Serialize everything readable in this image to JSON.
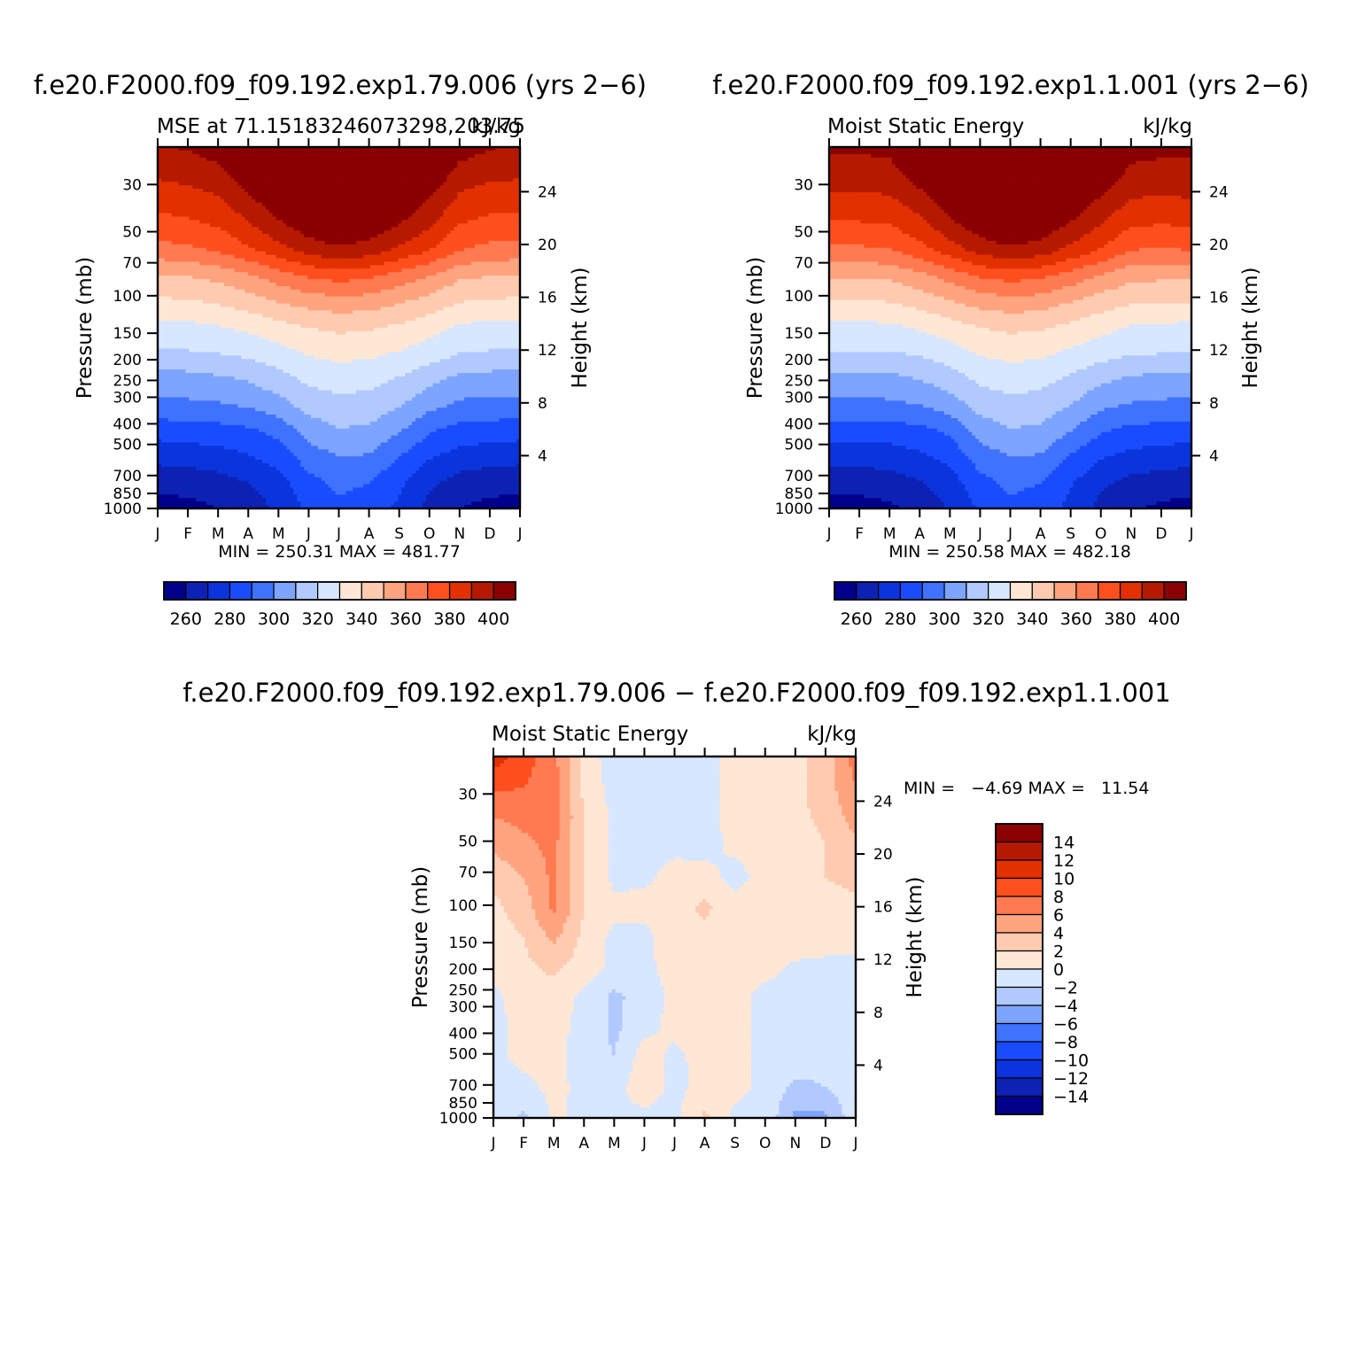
{
  "colors": {
    "mse_scale": [
      "#00008b",
      "#0d22b4",
      "#0a35dc",
      "#1a4cff",
      "#3f73ff",
      "#7da4ff",
      "#b0c9ff",
      "#d7e7ff",
      "#ffe7d5",
      "#ffcbb0",
      "#ffa47f",
      "#ff7a50",
      "#ff4f1f",
      "#e23000",
      "#b51a00",
      "#8b0000"
    ],
    "diff_scale": [
      "#00008b",
      "#0d22b4",
      "#0a35dc",
      "#1a4cff",
      "#3f73ff",
      "#7da4ff",
      "#b0c9ff",
      "#d7e7ff",
      "#ffe7d5",
      "#ffcbb0",
      "#ffa47f",
      "#ff7a50",
      "#ff4f1f",
      "#e23000",
      "#b51a00",
      "#8b0000"
    ]
  },
  "chart_data": [
    {
      "type": "heatmap",
      "title": "f.e20.F2000.f09_f09.192.exp1.79.006 (yrs 2−6)",
      "subtitle_left": "MSE at 71.15183246073298,203.75",
      "subtitle_right": "kJ/kg",
      "ylabel": "Pressure (mb)",
      "ylabel_right": "Height (km)",
      "x_ticks": [
        "J",
        "F",
        "M",
        "A",
        "M",
        "J",
        "J",
        "A",
        "S",
        "O",
        "N",
        "D",
        "J"
      ],
      "y_ticks": [
        "30",
        "50",
        "70",
        "100",
        "150",
        "200",
        "250",
        "300",
        "400",
        "500",
        "700",
        "850",
        "1000"
      ],
      "y_ticks_right": [
        "24",
        "20",
        "16",
        "12",
        "8",
        "4"
      ],
      "stats": "MIN = 250.31 MAX = 481.77",
      "min": 250.31,
      "max": 481.77,
      "colorbar_labels": [
        "260",
        "280",
        "300",
        "320",
        "340",
        "360",
        "380",
        "400"
      ],
      "levels": [
        255,
        260,
        265,
        270,
        275,
        280,
        285,
        290,
        295,
        300,
        305,
        310,
        315,
        320,
        325,
        330,
        335,
        340,
        345,
        350,
        355,
        360,
        365,
        370,
        375,
        380,
        385,
        390,
        395,
        400,
        405
      ],
      "values": [
        [
          399,
          401,
          405,
          420,
          430,
          440,
          445,
          440,
          430,
          420,
          405,
          401,
          399
        ],
        [
          392,
          394,
          397,
          408,
          418,
          430,
          435,
          430,
          420,
          410,
          396,
          393,
          392
        ],
        [
          384,
          386,
          389,
          398,
          408,
          418,
          423,
          418,
          410,
          400,
          388,
          385,
          384
        ],
        [
          376,
          378,
          381,
          389,
          398,
          406,
          411,
          407,
          400,
          392,
          380,
          377,
          376
        ],
        [
          366,
          368,
          371,
          378,
          386,
          394,
          398,
          395,
          388,
          380,
          370,
          367,
          366
        ],
        [
          349,
          350,
          353,
          358,
          365,
          371,
          374,
          372,
          366,
          360,
          352,
          350,
          349
        ],
        [
          338,
          339,
          341,
          345,
          350,
          354,
          356,
          355,
          351,
          346,
          340,
          339,
          338
        ],
        [
          326,
          327,
          329,
          332,
          336,
          340,
          342,
          341,
          338,
          334,
          328,
          327,
          326
        ],
        [
          318,
          319,
          320,
          322,
          326,
          331,
          333,
          332,
          329,
          325,
          320,
          319,
          318
        ],
        [
          305,
          306,
          308,
          311,
          316,
          322,
          324,
          323,
          319,
          313,
          307,
          306,
          305
        ],
        [
          297,
          298,
          299,
          301,
          306,
          314,
          317,
          316,
          311,
          303,
          298,
          297,
          297
        ],
        [
          284,
          285,
          286,
          288,
          293,
          304,
          309,
          308,
          301,
          291,
          286,
          285,
          284
        ],
        [
          273,
          274,
          276,
          279,
          284,
          295,
          300,
          299,
          290,
          281,
          276,
          274,
          273
        ],
        [
          263,
          264,
          266,
          270,
          276,
          287,
          292,
          290,
          282,
          272,
          266,
          264,
          263
        ],
        [
          256,
          257,
          260,
          264,
          272,
          282,
          288,
          286,
          278,
          267,
          260,
          257,
          256
        ]
      ]
    },
    {
      "type": "heatmap",
      "title": "f.e20.F2000.f09_f09.192.exp1.1.001 (yrs 2−6)",
      "subtitle_left": "Moist Static Energy",
      "subtitle_right": "kJ/kg",
      "ylabel": "Pressure (mb)",
      "ylabel_right": "Height (km)",
      "x_ticks": [
        "J",
        "F",
        "M",
        "A",
        "M",
        "J",
        "J",
        "A",
        "S",
        "O",
        "N",
        "D",
        "J"
      ],
      "y_ticks": [
        "30",
        "50",
        "70",
        "100",
        "150",
        "200",
        "250",
        "300",
        "400",
        "500",
        "700",
        "850",
        "1000"
      ],
      "y_ticks_right": [
        "24",
        "20",
        "16",
        "12",
        "8",
        "4"
      ],
      "stats": "MIN = 250.58 MAX = 482.18",
      "min": 250.58,
      "max": 482.18,
      "colorbar_labels": [
        "260",
        "280",
        "300",
        "320",
        "340",
        "360",
        "380",
        "400"
      ],
      "levels": [
        255,
        260,
        265,
        270,
        275,
        280,
        285,
        290,
        295,
        300,
        305,
        310,
        315,
        320,
        325,
        330,
        335,
        340,
        345,
        350,
        355,
        360,
        365,
        370,
        375,
        380,
        385,
        390,
        395,
        400,
        405
      ],
      "values": [
        [
          402,
          402,
          403,
          418,
          430,
          440,
          445,
          440,
          430,
          420,
          405,
          403,
          402
        ],
        [
          395,
          395,
          396,
          406,
          418,
          430,
          435,
          430,
          420,
          410,
          397,
          396,
          397
        ],
        [
          388,
          388,
          389,
          396,
          407,
          418,
          423,
          418,
          409,
          399,
          390,
          389,
          390
        ],
        [
          379,
          379,
          380,
          387,
          397,
          406,
          411,
          407,
          399,
          390,
          381,
          380,
          381
        ],
        [
          368,
          368,
          369,
          376,
          385,
          394,
          398,
          395,
          387,
          379,
          370,
          369,
          370
        ],
        [
          351,
          351,
          352,
          357,
          364,
          371,
          374,
          372,
          366,
          359,
          353,
          352,
          352
        ],
        [
          339,
          339,
          340,
          344,
          349,
          354,
          356,
          355,
          350,
          345,
          341,
          340,
          340
        ],
        [
          327,
          327,
          328,
          331,
          335,
          340,
          342,
          341,
          337,
          333,
          329,
          328,
          327
        ],
        [
          319,
          319,
          319,
          321,
          325,
          331,
          333,
          332,
          328,
          324,
          321,
          320,
          319
        ],
        [
          306,
          306,
          307,
          310,
          315,
          322,
          324,
          323,
          318,
          312,
          308,
          307,
          306
        ],
        [
          297,
          297,
          298,
          300,
          305,
          314,
          317,
          316,
          310,
          302,
          299,
          298,
          297
        ],
        [
          285,
          285,
          285,
          287,
          292,
          304,
          309,
          308,
          300,
          291,
          287,
          286,
          285
        ],
        [
          274,
          274,
          275,
          278,
          283,
          295,
          300,
          299,
          289,
          281,
          277,
          275,
          274
        ],
        [
          264,
          264,
          265,
          269,
          275,
          287,
          292,
          290,
          281,
          272,
          267,
          265,
          264
        ],
        [
          256,
          256,
          258,
          263,
          271,
          282,
          288,
          286,
          277,
          267,
          261,
          258,
          257
        ]
      ]
    },
    {
      "type": "heatmap",
      "title": "f.e20.F2000.f09_f09.192.exp1.79.006 − f.e20.F2000.f09_f09.192.exp1.1.001",
      "subtitle_left": "Moist Static Energy",
      "subtitle_right": "kJ/kg",
      "ylabel": "Pressure (mb)",
      "ylabel_right": "Height (km)",
      "x_ticks": [
        "J",
        "F",
        "M",
        "A",
        "M",
        "J",
        "J",
        "A",
        "S",
        "O",
        "N",
        "D",
        "J"
      ],
      "y_ticks": [
        "30",
        "50",
        "70",
        "100",
        "150",
        "200",
        "250",
        "300",
        "400",
        "500",
        "700",
        "850",
        "1000"
      ],
      "y_ticks_right": [
        "24",
        "20",
        "16",
        "12",
        "8",
        "4"
      ],
      "stats": "MIN =   −4.69 MAX =   11.54",
      "min": -4.69,
      "max": 11.54,
      "colorbar_labels": [
        "14",
        "12",
        "10",
        "8",
        "6",
        "4",
        "2",
        "0",
        "−2",
        "−4",
        "−6",
        "−8",
        "−10",
        "−12",
        "−14"
      ],
      "levels": [
        -14,
        -12,
        -10,
        -8,
        -6,
        -4,
        -2,
        0,
        2,
        4,
        6,
        8,
        10,
        12,
        14
      ],
      "values": [
        [
          11.0,
          9.0,
          6.5,
          1.5,
          -1.5,
          -0.5,
          -0.5,
          -0.5,
          0.5,
          1.0,
          1.5,
          3.0,
          7.0
        ],
        [
          8.5,
          8.0,
          7.0,
          1.5,
          -0.8,
          -0.5,
          -0.5,
          -0.5,
          0.5,
          1.0,
          1.5,
          3.0,
          6.0
        ],
        [
          6.0,
          6.5,
          7.0,
          2.0,
          -0.5,
          -0.5,
          -0.5,
          -0.5,
          0.5,
          1.0,
          1.5,
          2.5,
          5.0
        ],
        [
          4.5,
          5.5,
          6.5,
          2.0,
          -0.5,
          -0.5,
          -0.3,
          -0.5,
          0.3,
          0.8,
          1.0,
          2.0,
          3.5
        ],
        [
          2.5,
          4.0,
          6.5,
          2.0,
          -0.5,
          -0.3,
          0.5,
          0.5,
          -0.5,
          0.5,
          1.0,
          2.0,
          2.5
        ],
        [
          1.5,
          3.0,
          6.5,
          2.0,
          0.5,
          0.5,
          1.0,
          2.5,
          0.5,
          2.0,
          2.0,
          1.5,
          1.5
        ],
        [
          1.0,
          2.0,
          4.5,
          1.5,
          -0.5,
          -0.5,
          1.0,
          1.5,
          0.5,
          1.5,
          1.0,
          0.5,
          0.5
        ],
        [
          0.5,
          1.5,
          2.5,
          1.0,
          -0.5,
          -0.3,
          0.5,
          0.5,
          0.3,
          0.5,
          -0.3,
          -0.3,
          -0.3
        ],
        [
          -0.5,
          1.0,
          1.0,
          -0.5,
          -2.5,
          -1.0,
          0.5,
          1.0,
          0.5,
          -0.5,
          -0.5,
          -0.5,
          -0.5
        ],
        [
          -0.5,
          0.5,
          0.5,
          -0.5,
          -2.5,
          -0.5,
          0.5,
          1.0,
          0.5,
          -0.5,
          -0.5,
          -0.5,
          -0.5
        ],
        [
          -0.5,
          0.5,
          0.3,
          -0.5,
          -2.0,
          1.0,
          -0.5,
          0.8,
          0.5,
          -0.5,
          -0.8,
          -1.5,
          -0.5
        ],
        [
          -1.0,
          -0.5,
          0.5,
          -0.5,
          -0.5,
          1.0,
          -0.5,
          0.5,
          0.5,
          -0.5,
          -2.5,
          -2.0,
          -0.5
        ],
        [
          -0.5,
          -2.5,
          0.3,
          -0.5,
          -0.5,
          -0.5,
          -0.5,
          2.5,
          -0.5,
          -0.5,
          -4.5,
          -4.5,
          -0.5
        ]
      ]
    }
  ]
}
